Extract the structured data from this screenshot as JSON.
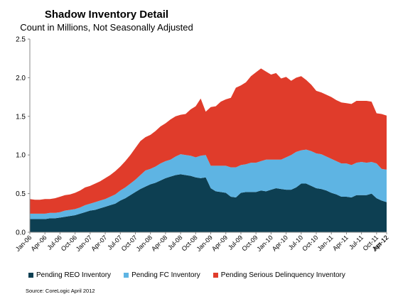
{
  "chart_data": {
    "type": "area",
    "stacked": true,
    "title": "Shadow Inventory Detail",
    "subtitle": "Count in Millions, Not Seasonally Adjusted",
    "xlabel": "",
    "ylabel": "",
    "ylim": [
      0,
      2.5
    ],
    "yticks": [
      "0.0",
      "0.5",
      "1.0",
      "1.5",
      "2.0",
      "2.5"
    ],
    "grid": false,
    "legend_position": "bottom",
    "x_tick_labels": [
      "Jan-06",
      "Apr-06",
      "Jul-06",
      "Oct-06",
      "Jan-07",
      "Apr-07",
      "Jul-07",
      "Oct-07",
      "Jan-08",
      "Apr-08",
      "Jul-08",
      "Oct-08",
      "Jan-09",
      "Apr-09",
      "Jul-09",
      "Oct-09",
      "Jan-10",
      "Apr-10",
      "Jul-10",
      "Oct-10",
      "Jan-11",
      "Apr-11",
      "Jul-11",
      "Oct-11",
      "Jan-12",
      "Apr-12"
    ],
    "series": [
      {
        "name": "Pending REO Inventory",
        "color": "#0d3f52",
        "values": [
          0.17,
          0.17,
          0.17,
          0.17,
          0.18,
          0.18,
          0.19,
          0.2,
          0.21,
          0.22,
          0.24,
          0.26,
          0.28,
          0.29,
          0.31,
          0.33,
          0.35,
          0.37,
          0.41,
          0.44,
          0.48,
          0.52,
          0.56,
          0.59,
          0.62,
          0.64,
          0.67,
          0.7,
          0.72,
          0.74,
          0.75,
          0.74,
          0.73,
          0.71,
          0.7,
          0.71,
          0.57,
          0.53,
          0.52,
          0.51,
          0.46,
          0.45,
          0.51,
          0.52,
          0.52,
          0.52,
          0.54,
          0.53,
          0.55,
          0.57,
          0.56,
          0.55,
          0.55,
          0.58,
          0.63,
          0.63,
          0.6,
          0.57,
          0.56,
          0.54,
          0.51,
          0.49,
          0.46,
          0.46,
          0.45,
          0.48,
          0.48,
          0.48,
          0.5,
          0.44,
          0.41,
          0.39
        ]
      },
      {
        "name": "Pending FC Inventory",
        "color": "#5eb4e3",
        "values": [
          0.07,
          0.07,
          0.07,
          0.07,
          0.07,
          0.07,
          0.07,
          0.08,
          0.08,
          0.08,
          0.08,
          0.09,
          0.09,
          0.1,
          0.1,
          0.1,
          0.11,
          0.12,
          0.13,
          0.14,
          0.15,
          0.16,
          0.18,
          0.21,
          0.2,
          0.21,
          0.22,
          0.22,
          0.22,
          0.24,
          0.26,
          0.26,
          0.26,
          0.26,
          0.29,
          0.29,
          0.29,
          0.33,
          0.34,
          0.35,
          0.38,
          0.39,
          0.36,
          0.36,
          0.38,
          0.38,
          0.38,
          0.41,
          0.39,
          0.37,
          0.38,
          0.42,
          0.45,
          0.46,
          0.43,
          0.44,
          0.45,
          0.45,
          0.45,
          0.44,
          0.44,
          0.43,
          0.43,
          0.43,
          0.42,
          0.42,
          0.43,
          0.42,
          0.41,
          0.45,
          0.41,
          0.42
        ]
      },
      {
        "name": "Pending Serious Delinquency Inventory",
        "color": "#e03c2b",
        "values": [
          0.19,
          0.18,
          0.18,
          0.19,
          0.18,
          0.19,
          0.2,
          0.2,
          0.2,
          0.21,
          0.22,
          0.23,
          0.23,
          0.24,
          0.25,
          0.27,
          0.28,
          0.3,
          0.31,
          0.34,
          0.37,
          0.41,
          0.44,
          0.43,
          0.44,
          0.46,
          0.48,
          0.49,
          0.52,
          0.52,
          0.51,
          0.53,
          0.6,
          0.66,
          0.74,
          0.56,
          0.76,
          0.77,
          0.83,
          0.86,
          0.9,
          1.03,
          1.03,
          1.06,
          1.12,
          1.17,
          1.2,
          1.14,
          1.1,
          1.12,
          1.05,
          1.04,
          0.96,
          0.96,
          0.96,
          0.9,
          0.86,
          0.81,
          0.8,
          0.8,
          0.8,
          0.79,
          0.79,
          0.78,
          0.79,
          0.8,
          0.79,
          0.8,
          0.78,
          0.65,
          0.71,
          0.7
        ]
      }
    ]
  },
  "source": "Source: CoreLogic April 2012"
}
